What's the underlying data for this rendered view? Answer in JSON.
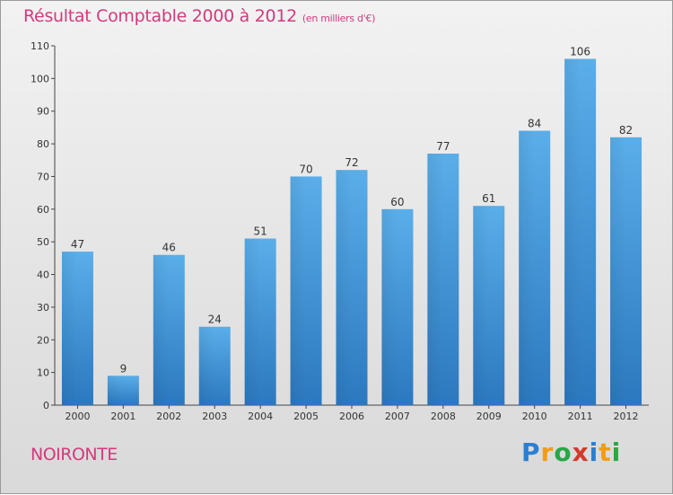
{
  "chart_data": {
    "type": "bar",
    "title": "Résultat Comptable 2000 à 2012",
    "subtitle": "(en milliers d'€)",
    "categories": [
      "2000",
      "2001",
      "2002",
      "2003",
      "2004",
      "2005",
      "2006",
      "2007",
      "2008",
      "2009",
      "2010",
      "2011",
      "2012"
    ],
    "values": [
      47,
      9,
      46,
      24,
      51,
      70,
      72,
      60,
      77,
      61,
      84,
      106,
      82
    ],
    "ylim": [
      0,
      110
    ],
    "yticks": [
      0,
      10,
      20,
      30,
      40,
      50,
      60,
      70,
      80,
      90,
      100,
      110
    ],
    "xlabel": "",
    "ylabel": "",
    "grid": false,
    "bar_color": "#3d8fd4"
  },
  "place_name": "NOIRONTE",
  "logo": {
    "letters": [
      "P",
      "r",
      "o",
      "x",
      "i",
      "t",
      "i"
    ],
    "colors": [
      "#2b7fd0",
      "#f39c12",
      "#27a844",
      "#d23a2c",
      "#2b7fd0",
      "#f39c12",
      "#27a844"
    ]
  }
}
